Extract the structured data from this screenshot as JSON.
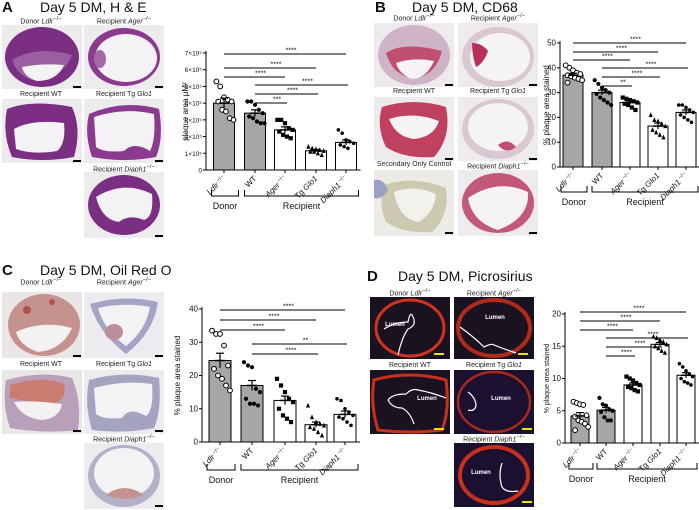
{
  "panels": {
    "A": {
      "letter": "A",
      "title": "Day 5 DM, H & E",
      "images": [
        {
          "label": "Donor ",
          "italic": "Ldlr",
          "sup": "−/−"
        },
        {
          "label": "Recipient ",
          "italic": "Ager",
          "sup": "−/−"
        },
        {
          "label": "Recipient WT",
          "italic": "",
          "sup": ""
        },
        {
          "label": "Recipient Tg ",
          "italic": "Glo1",
          "sup": ""
        },
        {
          "label": "Recipient ",
          "italic": "Diaph1",
          "sup": "−/−"
        }
      ]
    },
    "B": {
      "letter": "B",
      "title": "Day 5 DM, CD68",
      "images": [
        {
          "label": "Donor ",
          "italic": "Ldlr",
          "sup": "−/−"
        },
        {
          "label": "Recipient ",
          "italic": "Ager",
          "sup": "−/−"
        },
        {
          "label": "Recipient WT",
          "italic": "",
          "sup": ""
        },
        {
          "label": "Recipient Tg ",
          "italic": "Glo1",
          "sup": ""
        },
        {
          "label": "Secondary Only Control",
          "italic": "",
          "sup": ""
        },
        {
          "label": "Recipient ",
          "italic": "Diaph1",
          "sup": "−/−"
        }
      ]
    },
    "C": {
      "letter": "C",
      "title": "Day 5 DM, Oil Red O",
      "images": [
        {
          "label": "Donor ",
          "italic": "Ldlr",
          "sup": "−/−"
        },
        {
          "label": "Recipient ",
          "italic": "Ager",
          "sup": "−/−"
        },
        {
          "label": "Recipient WT",
          "italic": "",
          "sup": ""
        },
        {
          "label": "Recipient Tg ",
          "italic": "Glo1",
          "sup": ""
        },
        {
          "label": "Recipient ",
          "italic": "Diaph1",
          "sup": "−/−"
        }
      ]
    },
    "D": {
      "letter": "D",
      "title": "Day 5 DM, Picrosirius",
      "lumen_label": "Lumen",
      "images": [
        {
          "label": "Donor ",
          "italic": "Ldlr",
          "sup": "−/−"
        },
        {
          "label": "Recipient ",
          "italic": "Ager",
          "sup": "−/−"
        },
        {
          "label": "Recipient WT",
          "italic": "",
          "sup": ""
        },
        {
          "label": "Recipient Tg ",
          "italic": "Glo1",
          "sup": ""
        },
        {
          "label": "Recipient ",
          "italic": "Diaph1",
          "sup": "−/−"
        }
      ]
    }
  },
  "colors": {
    "donor_bar": "#a6a6a6",
    "recipient_bar": "#ffffff",
    "axis": "#000000",
    "he_stain": "#7a2f82",
    "cd68_stain": "#b8305a",
    "oro_stain": "#c0665a",
    "picro_bg": "#1a1220",
    "picro_fiber": "#d0321e",
    "scalebar_D": "#e6e600"
  },
  "chart_data": [
    {
      "panel": "A",
      "type": "bar",
      "title": "Day 5 DM, H & E",
      "xlabel": "",
      "ylabel": "plaque area μM²",
      "categories": [
        "Ldlr−/−",
        "WT",
        "Ager−/−",
        "Tg Glo1",
        "Diaph1−/−"
      ],
      "groups": [
        {
          "name": "Donor",
          "categories": [
            "Ldlr−/−"
          ]
        },
        {
          "name": "Recipient",
          "categories": [
            "WT",
            "Ager−/−",
            "Tg Glo1",
            "Diaph1−/−"
          ]
        }
      ],
      "values": [
        400000,
        340000,
        240000,
        115000,
        165000
      ],
      "sem": [
        30000,
        20000,
        18000,
        8000,
        15000
      ],
      "yticks": [
        "0",
        "1×10⁵",
        "2×10⁵",
        "3×10⁵",
        "4×10⁵",
        "5×10⁵",
        "6×10⁵",
        "7×10⁵"
      ],
      "ylim": [
        0,
        700000
      ],
      "significance": [
        {
          "from": "Ldlr−/−",
          "to": "Diaph1−/−",
          "label": "****"
        },
        {
          "from": "Ldlr−/−",
          "to": "Tg Glo1",
          "label": "****"
        },
        {
          "from": "Ldlr−/−",
          "to": "Ager−/−",
          "label": "****"
        },
        {
          "from": "WT",
          "to": "Diaph1−/−",
          "label": "****"
        },
        {
          "from": "WT",
          "to": "Tg Glo1",
          "label": "****"
        },
        {
          "from": "WT",
          "to": "Ager−/−",
          "label": "***"
        }
      ],
      "points": [
        [
          530000,
          500000,
          435000,
          420000,
          410000,
          410000,
          360000,
          350000,
          310000,
          300000
        ],
        [
          410000,
          410000,
          390000,
          360000,
          340000,
          320000,
          310000,
          290000,
          280000,
          280000
        ],
        [
          300000,
          300000,
          280000,
          250000,
          240000,
          230000,
          210000,
          200000,
          190000
        ],
        [
          140000,
          130000,
          125000,
          120000,
          115000,
          110000,
          110000,
          100000,
          90000
        ],
        [
          240000,
          220000,
          180000,
          170000,
          160000,
          150000,
          140000,
          130000
        ]
      ],
      "markers": [
        "open-circle",
        "filled-circle",
        "filled-square",
        "filled-triangle",
        "filled-diamond"
      ],
      "grid": false,
      "legend": null
    },
    {
      "panel": "B",
      "type": "bar",
      "title": "Day 5 DM, CD68",
      "xlabel": "",
      "ylabel": "% plaque area stained",
      "categories": [
        "Ldlr−/−",
        "WT",
        "Ager−/−",
        "Tg Glo1",
        "Diaph1−/−"
      ],
      "groups": [
        {
          "name": "Donor",
          "categories": [
            "Ldlr−/−"
          ]
        },
        {
          "name": "Recipient",
          "categories": [
            "WT",
            "Ager−/−",
            "Tg Glo1",
            "Diaph1−/−"
          ]
        }
      ],
      "values": [
        37,
        30,
        26,
        16.5,
        22
      ],
      "sem": [
        0.8,
        1.0,
        0.7,
        1.2,
        1.0
      ],
      "yticks": [
        "0",
        "10",
        "20",
        "30",
        "40",
        "50"
      ],
      "ylim": [
        0,
        50
      ],
      "significance": [
        {
          "from": "Ldlr−/−",
          "to": "Diaph1−/−",
          "label": "****"
        },
        {
          "from": "Ldlr−/−",
          "to": "Tg Glo1",
          "label": "****"
        },
        {
          "from": "Ldlr−/−",
          "to": "Ager−/−",
          "label": "****"
        },
        {
          "from": "WT",
          "to": "Diaph1−/−",
          "label": "****"
        },
        {
          "from": "WT",
          "to": "Tg Glo1",
          "label": "****"
        },
        {
          "from": "WT",
          "to": "Ager−/−",
          "label": "**"
        }
      ],
      "points": [
        [
          41,
          40,
          39,
          38,
          37.5,
          37,
          36.5,
          36,
          35.5,
          35,
          34
        ],
        [
          35,
          33.5,
          32,
          31,
          30,
          29.5,
          28,
          27,
          26,
          25
        ],
        [
          28,
          27.5,
          27,
          26.5,
          26,
          25.5,
          25,
          24,
          23
        ],
        [
          21,
          19,
          18.5,
          17.5,
          16.5,
          15,
          14,
          13,
          12
        ],
        [
          25,
          25,
          24,
          23,
          22,
          21,
          20,
          19,
          18
        ]
      ],
      "markers": [
        "open-circle",
        "filled-circle",
        "filled-square",
        "filled-triangle",
        "filled-diamond"
      ],
      "grid": false,
      "legend": null
    },
    {
      "panel": "C",
      "type": "bar",
      "title": "Day 5 DM, Oil Red O",
      "xlabel": "",
      "ylabel": "% plaque area stained",
      "categories": [
        "Ldlr−/−",
        "WT",
        "Ager−/−",
        "Tg Glo1",
        "Diaph1−/−"
      ],
      "groups": [
        {
          "name": "Donor",
          "categories": [
            "Ldlr−/−"
          ]
        },
        {
          "name": "Recipient",
          "categories": [
            "WT",
            "Ager−/−",
            "Tg Glo1",
            "Diaph1−/−"
          ]
        }
      ],
      "values": [
        24.5,
        17,
        12.5,
        5.2,
        8.3
      ],
      "sem": [
        2.2,
        1.5,
        1.3,
        0.8,
        1.0
      ],
      "yticks": [
        "0",
        "10",
        "20",
        "30",
        "40"
      ],
      "ylim": [
        0,
        40
      ],
      "significance": [
        {
          "from": "Ldlr−/−",
          "to": "Diaph1−/−",
          "label": "****"
        },
        {
          "from": "Ldlr−/−",
          "to": "Tg Glo1",
          "label": "****"
        },
        {
          "from": "Ldlr−/−",
          "to": "Ager−/−",
          "label": "****"
        },
        {
          "from": "WT",
          "to": "Diaph1−/−",
          "label": "**"
        },
        {
          "from": "WT",
          "to": "Tg Glo1",
          "label": "****"
        }
      ],
      "points": [
        [
          33.5,
          32.5,
          32.5,
          29,
          23,
          22,
          20,
          19,
          17,
          15.5
        ],
        [
          24,
          23,
          22.5,
          16,
          15,
          13,
          11.5,
          11.5,
          11
        ],
        [
          19,
          17,
          15,
          13,
          12,
          10,
          8,
          7,
          6
        ],
        [
          11,
          7.5,
          6,
          5.5,
          5,
          4.5,
          4,
          3,
          2
        ],
        [
          13,
          12.5,
          10,
          9,
          8,
          7.5,
          7,
          6,
          5
        ]
      ],
      "markers": [
        "open-circle",
        "filled-circle",
        "filled-square",
        "filled-triangle",
        "filled-diamond"
      ],
      "grid": false,
      "legend": null
    },
    {
      "panel": "D",
      "type": "bar",
      "title": "Day 5 DM, Picrosirius",
      "xlabel": "",
      "ylabel": "% plaque area stained",
      "categories": [
        "Ldlr−/−",
        "WT",
        "Ager−/−",
        "Tg Glo1",
        "Diaph1−/−"
      ],
      "groups": [
        {
          "name": "Donor",
          "categories": [
            "Ldlr−/−"
          ]
        },
        {
          "name": "Recipient",
          "categories": [
            "WT",
            "Ager−/−",
            "Tg Glo1",
            "Diaph1−/−"
          ]
        }
      ],
      "values": [
        4.2,
        5.1,
        9.0,
        15.3,
        10.5
      ],
      "sem": [
        0.5,
        0.4,
        0.3,
        0.3,
        0.4
      ],
      "yticks": [
        "0",
        "5",
        "10",
        "15",
        "20"
      ],
      "ylim": [
        0,
        20
      ],
      "significance": [
        {
          "from": "Ldlr−/−",
          "to": "Diaph1−/−",
          "label": "****"
        },
        {
          "from": "Ldlr−/−",
          "to": "Tg Glo1",
          "label": "****"
        },
        {
          "from": "Ldlr−/−",
          "to": "Ager−/−",
          "label": "****"
        },
        {
          "from": "WT",
          "to": "Diaph1−/−",
          "label": "****"
        },
        {
          "from": "WT",
          "to": "Tg Glo1",
          "label": "****"
        },
        {
          "from": "WT",
          "to": "Ager−/−",
          "label": "****"
        }
      ],
      "points": [
        [
          6.4,
          6.2,
          6.0,
          5.9,
          4.3,
          4.1,
          3.5,
          3.3,
          3.0,
          2.5,
          2.0
        ],
        [
          7.0,
          6.0,
          5.8,
          5.2,
          5.0,
          4.8,
          4.0,
          3.5,
          3.5
        ],
        [
          10.3,
          10.0,
          9.7,
          9.3,
          9.0,
          8.7,
          8.5,
          8.2,
          8.0
        ],
        [
          16.5,
          16.3,
          16.0,
          15.7,
          15.3,
          15.0,
          14.7,
          14.3,
          14.0
        ],
        [
          12.3,
          11.8,
          11.2,
          10.7,
          10.3,
          10.0,
          9.5,
          9.3,
          9.0
        ]
      ],
      "markers": [
        "open-circle",
        "filled-circle",
        "filled-square",
        "filled-triangle",
        "filled-diamond"
      ],
      "grid": false,
      "legend": null
    }
  ]
}
